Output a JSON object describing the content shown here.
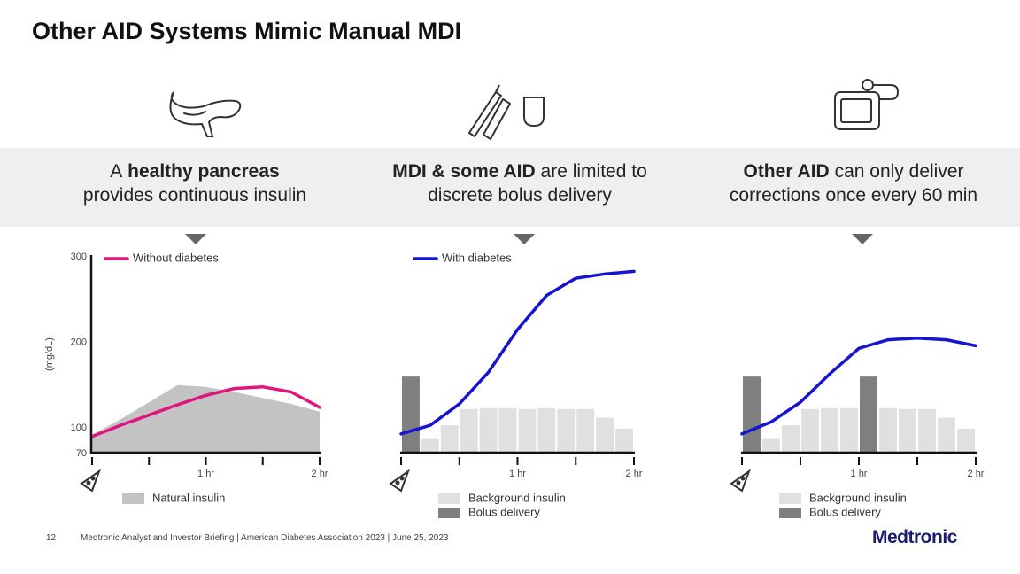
{
  "title": "Other AID Systems Mimic Manual MDI",
  "panels": [
    {
      "line1": [
        {
          "text": "A",
          "bold": false
        },
        {
          "text": "healthy pancreas",
          "bold": true
        }
      ],
      "line2": [
        {
          "text": "provides continuous insulin",
          "bold": false
        }
      ]
    },
    {
      "line1": [
        {
          "text": "MDI & some AID",
          "bold": true
        },
        {
          "text": "are limited to",
          "bold": false
        }
      ],
      "line2": [
        {
          "text": "discrete bolus delivery",
          "bold": false
        }
      ]
    },
    {
      "line1": [
        {
          "text": "Other AID",
          "bold": true
        },
        {
          "text": "can only deliver",
          "bold": false
        }
      ],
      "line2": [
        {
          "text": "corrections once every 60 min",
          "bold": false
        }
      ]
    }
  ],
  "chart_data": [
    {
      "type": "combo",
      "ylabel": "(mg/dL)",
      "xlim": [
        0,
        2
      ],
      "ylim": [
        70,
        300
      ],
      "yticks": [
        70,
        100,
        200,
        300
      ],
      "xticks": [
        {
          "value": 0
        },
        {
          "value": 0.5
        },
        {
          "value": 1,
          "label": "1 hr"
        },
        {
          "value": 1.5
        },
        {
          "value": 2,
          "label": "2 hr"
        }
      ],
      "series": [
        {
          "kind": "area",
          "name": "Natural insulin",
          "color": "#c3c3c3",
          "x": [
            0,
            0.25,
            0.5,
            0.75,
            1,
            1.25,
            1.5,
            1.75,
            2
          ],
          "values": [
            92,
            110,
            130,
            150,
            148,
            142,
            135,
            128,
            119
          ]
        },
        {
          "kind": "line",
          "name": "Without diabetes",
          "color": "#e0157d",
          "x": [
            0,
            0.25,
            0.5,
            0.75,
            1,
            1.25,
            1.5,
            1.75,
            2
          ],
          "values": [
            90,
            103,
            115,
            127,
            138,
            146,
            148,
            142,
            124
          ]
        }
      ]
    },
    {
      "type": "combo",
      "xlim": [
        0,
        2
      ],
      "ylim": [
        70,
        300
      ],
      "xticks": [
        {
          "value": 0
        },
        {
          "value": 0.5
        },
        {
          "value": 1,
          "label": "1 hr"
        },
        {
          "value": 1.5
        },
        {
          "value": 2,
          "label": "2 hr"
        }
      ],
      "series": [
        {
          "kind": "bar",
          "name": "Background insulin",
          "color": "#e0e0e0",
          "values": [
            null,
            87,
            103,
            122,
            123,
            123,
            122,
            123,
            122,
            122,
            112,
            99
          ]
        },
        {
          "kind": "bar",
          "name": "Bolus delivery",
          "color": "#7f7f7f",
          "values": [
            160,
            null,
            null,
            null,
            null,
            null,
            null,
            null,
            null,
            null,
            null,
            null
          ]
        },
        {
          "kind": "line",
          "name": "With diabetes",
          "color": "#1414d2",
          "x": [
            0,
            0.25,
            0.5,
            0.75,
            1,
            1.25,
            1.5,
            1.75,
            2
          ],
          "values": [
            93,
            103,
            128,
            165,
            215,
            255,
            275,
            280,
            283
          ]
        }
      ]
    },
    {
      "type": "combo",
      "xlim": [
        0,
        2
      ],
      "ylim": [
        70,
        300
      ],
      "xticks": [
        {
          "value": 0
        },
        {
          "value": 0.5
        },
        {
          "value": 1,
          "label": "1 hr"
        },
        {
          "value": 1.5
        },
        {
          "value": 2,
          "label": "2 hr"
        }
      ],
      "series": [
        {
          "kind": "bar",
          "name": "Background insulin",
          "color": "#e0e0e0",
          "values": [
            null,
            87,
            103,
            122,
            123,
            123,
            null,
            123,
            122,
            122,
            112,
            99
          ]
        },
        {
          "kind": "bar",
          "name": "Bolus delivery",
          "color": "#7f7f7f",
          "values": [
            160,
            null,
            null,
            null,
            null,
            null,
            160,
            null,
            null,
            null,
            null,
            null
          ]
        },
        {
          "kind": "line",
          "color": "#1414d2",
          "x": [
            0,
            0.25,
            0.5,
            0.75,
            1,
            1.25,
            1.5,
            1.75,
            2
          ],
          "values": [
            93,
            107,
            130,
            163,
            193,
            203,
            205,
            203,
            196
          ]
        }
      ]
    }
  ],
  "footer": {
    "page": "12",
    "text": "Medtronic Analyst and Investor Briefing | American Diabetes Association 2023 | June 25, 2023",
    "logo": "Medtronic"
  }
}
